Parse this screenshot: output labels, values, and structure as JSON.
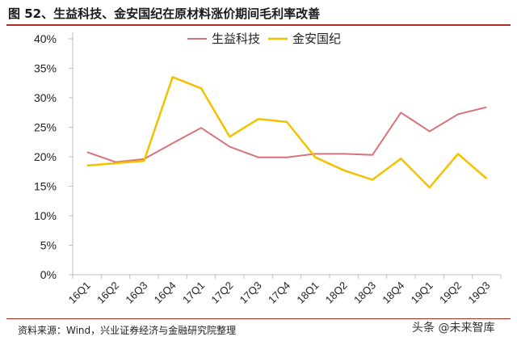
{
  "figure": {
    "title": "图 52、生益科技、金安国纪在原材料涨价期间毛利率改善",
    "source": "资料来源：Wind，兴业证券经济与金融研究院整理",
    "watermark": "头条 @未来智库"
  },
  "colors": {
    "series_1": "#d9737a",
    "series_2": "#f2c100",
    "rule": "#b22a2a",
    "axis": "#bfbfbf"
  },
  "chart_data": {
    "type": "line",
    "categories": [
      "16Q1",
      "16Q2",
      "16Q3",
      "16Q4",
      "17Q1",
      "17Q2",
      "17Q3",
      "17Q4",
      "18Q1",
      "18Q2",
      "18Q3",
      "18Q4",
      "19Q1",
      "19Q2",
      "19Q3"
    ],
    "series": [
      {
        "name": "生益科技",
        "values": [
          20.8,
          19.1,
          19.6,
          22.3,
          24.9,
          21.7,
          19.9,
          19.9,
          20.5,
          20.5,
          20.3,
          27.5,
          24.3,
          27.2,
          28.4
        ]
      },
      {
        "name": "金安国纪",
        "values": [
          18.5,
          18.9,
          19.3,
          33.5,
          31.6,
          23.4,
          26.4,
          25.9,
          19.9,
          17.7,
          16.1,
          19.7,
          14.8,
          20.5,
          16.3
        ]
      }
    ],
    "yticks": [
      "0%",
      "5%",
      "10%",
      "15%",
      "20%",
      "25%",
      "30%",
      "35%",
      "40%"
    ],
    "ylim": [
      0,
      40
    ],
    "grid": false,
    "legend_position": "top-center"
  }
}
